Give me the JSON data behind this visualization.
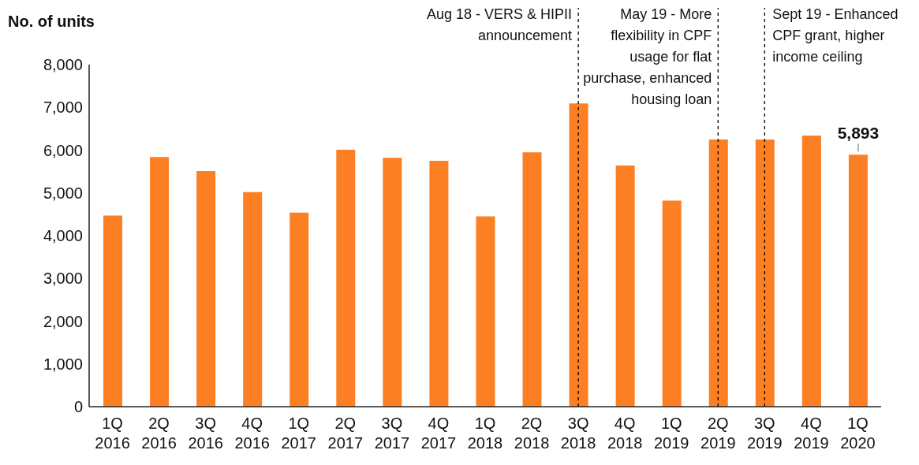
{
  "chart_data": {
    "type": "bar",
    "ylabel": "No. of units",
    "categories": [
      "1Q 2016",
      "2Q 2016",
      "3Q 2016",
      "4Q 2016",
      "1Q 2017",
      "2Q 2017",
      "3Q 2017",
      "4Q 2017",
      "1Q 2018",
      "2Q 2018",
      "3Q 2018",
      "4Q 2018",
      "1Q 2019",
      "2Q 2019",
      "3Q 2019",
      "4Q 2019",
      "1Q 2020"
    ],
    "values": [
      4470,
      5840,
      5510,
      5020,
      4540,
      6010,
      5820,
      5750,
      4450,
      5950,
      7090,
      5640,
      4820,
      6250,
      6250,
      6340,
      5893
    ],
    "value_labels": [
      null,
      null,
      null,
      null,
      null,
      null,
      null,
      null,
      null,
      null,
      null,
      null,
      null,
      null,
      null,
      null,
      "5,893"
    ],
    "color": "#fd7f24",
    "ylim": [
      0,
      8000
    ],
    "yticks": [
      {
        "value": 0,
        "label": "0"
      },
      {
        "value": 1000,
        "label": "1,000"
      },
      {
        "value": 2000,
        "label": "2,000"
      },
      {
        "value": 3000,
        "label": "3,000"
      },
      {
        "value": 4000,
        "label": "4,000"
      },
      {
        "value": 5000,
        "label": "5,000"
      },
      {
        "value": 6000,
        "label": "6,000"
      },
      {
        "value": 7000,
        "label": "7,000"
      },
      {
        "value": 8000,
        "label": "8,000"
      }
    ],
    "ref_lines": [
      {
        "axis": "x",
        "value": "3Q 2018",
        "label": "Aug 18 - VERS & HIPII announcement",
        "line_style": "dashed",
        "color": "#000000"
      },
      {
        "axis": "x",
        "value": "2Q 2019",
        "label": "May 19 - More flexibility in CPF usage for flat purchase, enhanced housing loan",
        "line_style": "dashed",
        "color": "#000000"
      },
      {
        "axis": "x",
        "value": "3Q 2019",
        "label": "Sept 19 - Enhanced CPF grant, higher income ceiling",
        "line_style": "dashed",
        "color": "#000000"
      }
    ],
    "grid": false
  }
}
